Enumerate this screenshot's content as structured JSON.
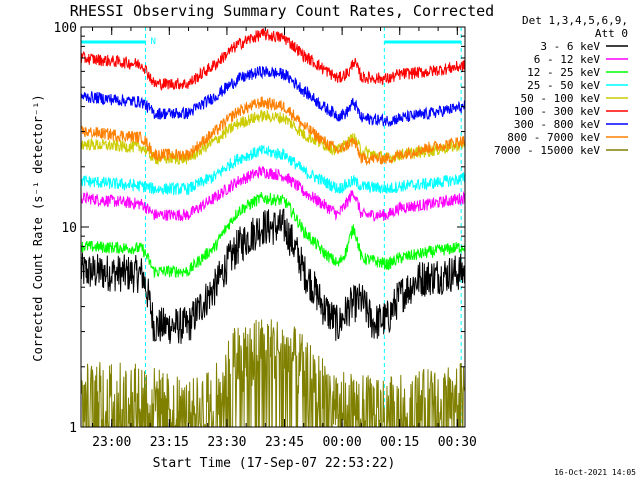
{
  "chart_data": {
    "type": "line",
    "title": "RHESSI Observing Summary Count Rates, Corrected",
    "ylabel": "Corrected Count Rate (s⁻¹ detector⁻¹)",
    "xlabel": "Start Time (17-Sep-07 22:53:22)",
    "footer_date": "16-Oct-2021 14:05",
    "legend_header": [
      "Det 1,3,4,5,6,9,",
      "Att 0"
    ],
    "y_scale": "log",
    "ylim": [
      1,
      100
    ],
    "y_ticks": [
      {
        "value": 1,
        "label": "1"
      },
      {
        "value": 10,
        "label": "10"
      },
      {
        "value": 100,
        "label": "100"
      }
    ],
    "x_range_min": [
      -3,
      97
    ],
    "x_ticks": [
      {
        "t": 5,
        "label": "23:00"
      },
      {
        "t": 20,
        "label": "23:15"
      },
      {
        "t": 35,
        "label": "23:30"
      },
      {
        "t": 50,
        "label": "23:45"
      },
      {
        "t": 65,
        "label": "00:00"
      },
      {
        "t": 80,
        "label": "00:15"
      },
      {
        "t": 95,
        "label": "00:30"
      }
    ],
    "night_marker_label": "N",
    "night_intervals": [
      [
        -3,
        13.8
      ],
      [
        76,
        96
      ]
    ],
    "background": "#ffffff",
    "series": [
      {
        "name": "3 - 6 keV",
        "color": "#000000",
        "profile": [
          [
            -3,
            6
          ],
          [
            13,
            5.8
          ],
          [
            16,
            3.2
          ],
          [
            25,
            3.2
          ],
          [
            32,
            5
          ],
          [
            38,
            8
          ],
          [
            44,
            10
          ],
          [
            50,
            10
          ],
          [
            55,
            6
          ],
          [
            60,
            4
          ],
          [
            64,
            3.2
          ],
          [
            67,
            4
          ],
          [
            70,
            4.3
          ],
          [
            73,
            3.3
          ],
          [
            77,
            3.5
          ],
          [
            80,
            4.5
          ],
          [
            85,
            5.5
          ],
          [
            97,
            6
          ]
        ]
      },
      {
        "name": "6 - 12 keV",
        "color": "#ff00ff",
        "profile": [
          [
            -3,
            14
          ],
          [
            13,
            13
          ],
          [
            16,
            11.5
          ],
          [
            25,
            11.5
          ],
          [
            32,
            14
          ],
          [
            38,
            17
          ],
          [
            44,
            19
          ],
          [
            50,
            18
          ],
          [
            55,
            15
          ],
          [
            60,
            13
          ],
          [
            64,
            11.5
          ],
          [
            66,
            13
          ],
          [
            68,
            15
          ],
          [
            70,
            11.5
          ],
          [
            77,
            11.5
          ],
          [
            80,
            12.5
          ],
          [
            88,
            13
          ],
          [
            97,
            14
          ]
        ]
      },
      {
        "name": "12 - 25 keV",
        "color": "#00ff00",
        "profile": [
          [
            -3,
            8
          ],
          [
            13,
            7.8
          ],
          [
            16,
            6
          ],
          [
            25,
            6
          ],
          [
            32,
            8
          ],
          [
            38,
            12
          ],
          [
            44,
            14
          ],
          [
            50,
            13.5
          ],
          [
            55,
            9.5
          ],
          [
            60,
            7.5
          ],
          [
            64,
            6.5
          ],
          [
            66,
            7.5
          ],
          [
            68,
            10
          ],
          [
            70,
            7
          ],
          [
            77,
            6.5
          ],
          [
            80,
            7
          ],
          [
            88,
            7.5
          ],
          [
            97,
            8
          ]
        ]
      },
      {
        "name": "25 - 50 keV",
        "color": "#00ffff",
        "profile": [
          [
            -3,
            17
          ],
          [
            13,
            16
          ],
          [
            16,
            15.5
          ],
          [
            25,
            15.5
          ],
          [
            32,
            18
          ],
          [
            38,
            22
          ],
          [
            44,
            24
          ],
          [
            50,
            23
          ],
          [
            55,
            19
          ],
          [
            60,
            17
          ],
          [
            64,
            15.5
          ],
          [
            68,
            17
          ],
          [
            70,
            16
          ],
          [
            77,
            15.5
          ],
          [
            80,
            16
          ],
          [
            88,
            16.5
          ],
          [
            97,
            17.5
          ]
        ]
      },
      {
        "name": "50 - 100 keV",
        "color": "#cccc00",
        "profile": [
          [
            -3,
            26
          ],
          [
            13,
            25
          ],
          [
            16,
            22
          ],
          [
            25,
            22
          ],
          [
            32,
            27
          ],
          [
            38,
            33
          ],
          [
            44,
            36
          ],
          [
            50,
            35
          ],
          [
            55,
            29
          ],
          [
            60,
            26
          ],
          [
            64,
            24
          ],
          [
            68,
            28
          ],
          [
            70,
            24
          ],
          [
            77,
            22
          ],
          [
            80,
            23
          ],
          [
            88,
            24
          ],
          [
            97,
            26
          ]
        ]
      },
      {
        "name": "100 - 300 keV",
        "color": "#ff0000",
        "profile": [
          [
            -3,
            70
          ],
          [
            13,
            65
          ],
          [
            16,
            52
          ],
          [
            25,
            52
          ],
          [
            32,
            65
          ],
          [
            38,
            82
          ],
          [
            44,
            92
          ],
          [
            50,
            88
          ],
          [
            55,
            72
          ],
          [
            60,
            62
          ],
          [
            64,
            55
          ],
          [
            67,
            60
          ],
          [
            68,
            68
          ],
          [
            70,
            56
          ],
          [
            77,
            55
          ],
          [
            80,
            58
          ],
          [
            88,
            60
          ],
          [
            97,
            64
          ]
        ]
      },
      {
        "name": "300 - 800 keV",
        "color": "#0000ff",
        "profile": [
          [
            -3,
            45
          ],
          [
            13,
            42
          ],
          [
            16,
            37
          ],
          [
            25,
            37
          ],
          [
            32,
            45
          ],
          [
            38,
            55
          ],
          [
            44,
            60
          ],
          [
            50,
            58
          ],
          [
            55,
            48
          ],
          [
            60,
            40
          ],
          [
            64,
            36
          ],
          [
            66,
            37
          ],
          [
            68,
            42
          ],
          [
            70,
            35
          ],
          [
            77,
            34
          ],
          [
            80,
            35
          ],
          [
            88,
            37
          ],
          [
            97,
            40
          ]
        ]
      },
      {
        "name": "800 - 7000 keV",
        "color": "#ff8000",
        "profile": [
          [
            -3,
            30
          ],
          [
            13,
            28
          ],
          [
            16,
            23
          ],
          [
            25,
            23
          ],
          [
            32,
            30
          ],
          [
            38,
            38
          ],
          [
            44,
            42
          ],
          [
            50,
            40
          ],
          [
            55,
            32
          ],
          [
            60,
            27
          ],
          [
            64,
            24
          ],
          [
            68,
            27
          ],
          [
            70,
            22
          ],
          [
            77,
            22
          ],
          [
            80,
            23
          ],
          [
            88,
            25
          ],
          [
            97,
            27
          ]
        ]
      },
      {
        "name": "7000 - 15000 keV",
        "color": "#808000",
        "profile": [
          [
            -3,
            1.25
          ],
          [
            13,
            1.25
          ],
          [
            25,
            1.0
          ],
          [
            32,
            1.2
          ],
          [
            37,
            1.9
          ],
          [
            44,
            2.1
          ],
          [
            50,
            2.1
          ],
          [
            56,
            1.6
          ],
          [
            62,
            1.2
          ],
          [
            66,
            1.1
          ],
          [
            76,
            1.05
          ],
          [
            97,
            1.25
          ]
        ]
      }
    ]
  }
}
